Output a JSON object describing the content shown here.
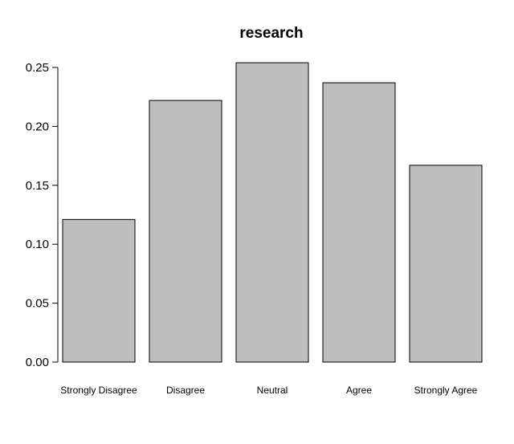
{
  "chart_data": {
    "type": "bar",
    "title": "research",
    "xlabel": "",
    "ylabel": "",
    "categories": [
      "Strongly Disagree",
      "Disagree",
      "Neutral",
      "Agree",
      "Strongly Agree"
    ],
    "values": [
      0.121,
      0.222,
      0.254,
      0.237,
      0.167
    ],
    "ylim": [
      0,
      0.25
    ],
    "yticks": [
      "0.00",
      "0.05",
      "0.10",
      "0.15",
      "0.20",
      "0.25"
    ],
    "grid": false,
    "legend": "none",
    "colors": {
      "bar_fill": "#bebebe",
      "bar_stroke": "#000000",
      "axis": "#000000",
      "background": "#ffffff"
    }
  }
}
